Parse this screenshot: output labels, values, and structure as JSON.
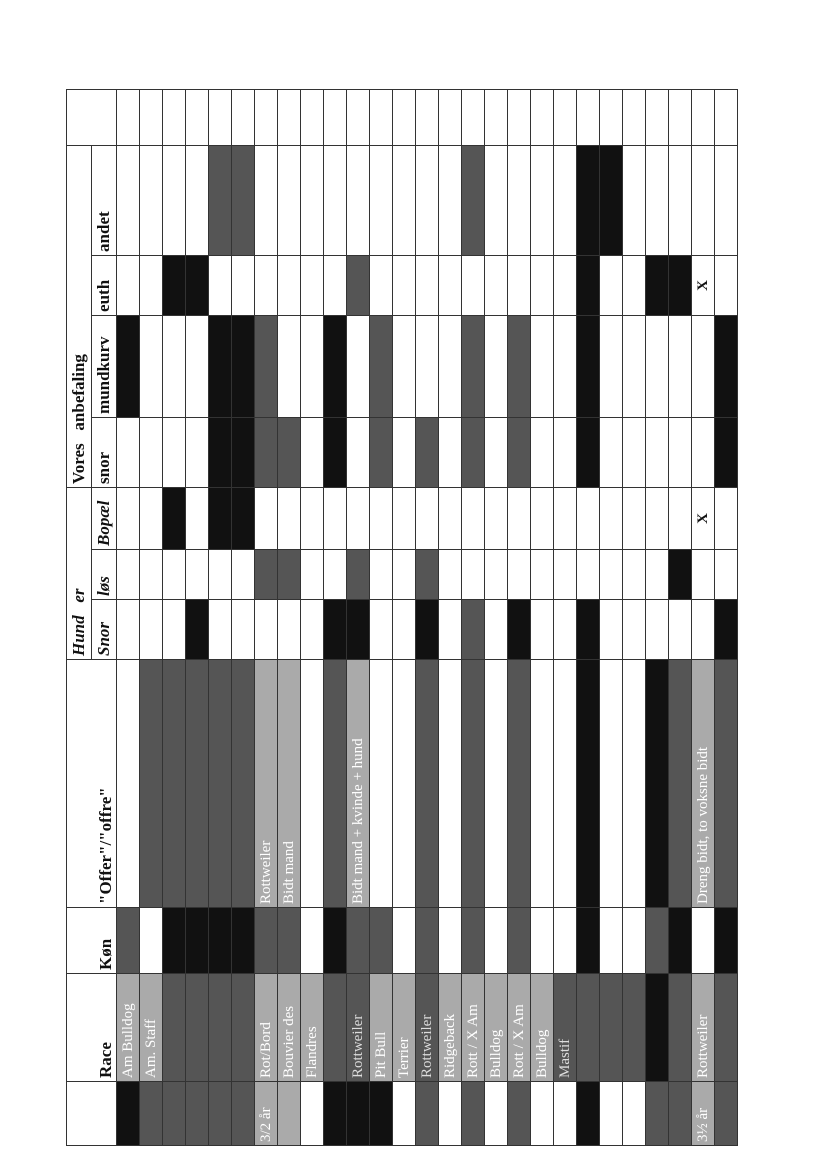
{
  "header": {
    "race": "Race",
    "kon": "Køn",
    "offer": "\"Offer\"/\"offre\"",
    "hund": "Hund",
    "er": "er",
    "snor": "Snor",
    "los": "løs",
    "bopael": "Bopæl",
    "vores": "Vores",
    "anbefaling": "anbefaling",
    "vsnor": "snor",
    "mundkurv": "mundkurv",
    "euth": "euth",
    "andet": "andet"
  },
  "table": {
    "rows": [
      [
        null,
        "Am Bulldog",
        null,
        null,
        null,
        null,
        null,
        null,
        null,
        null,
        null
      ],
      [
        null,
        "Am. Staff",
        null,
        null,
        null,
        null,
        null,
        null,
        null,
        null,
        null
      ],
      [
        null,
        null,
        null,
        null,
        null,
        null,
        null,
        null,
        null,
        null,
        null
      ],
      [
        null,
        null,
        null,
        null,
        null,
        null,
        null,
        null,
        null,
        null,
        null
      ],
      [
        null,
        null,
        null,
        null,
        null,
        null,
        null,
        null,
        null,
        null,
        null
      ],
      [
        null,
        null,
        null,
        null,
        null,
        null,
        null,
        null,
        null,
        null,
        null
      ],
      [
        "3/2 år",
        "Rot/Bord",
        null,
        "Rottweiler",
        null,
        null,
        null,
        null,
        null,
        null,
        null
      ],
      [
        null,
        "Bouvier des",
        null,
        "Bidt mand",
        null,
        null,
        null,
        null,
        null,
        null,
        null
      ],
      [
        null,
        "Flandres",
        null,
        null,
        null,
        null,
        null,
        null,
        null,
        null,
        null
      ],
      [
        null,
        null,
        null,
        null,
        null,
        null,
        null,
        null,
        null,
        null,
        null
      ],
      [
        null,
        "Rottweiler",
        null,
        "Bidt mand + kvinde + hund",
        null,
        null,
        null,
        null,
        null,
        null,
        null
      ],
      [
        null,
        "Pit Bull",
        null,
        null,
        null,
        null,
        null,
        null,
        null,
        null,
        null
      ],
      [
        null,
        "Terrier",
        null,
        null,
        null,
        null,
        null,
        null,
        null,
        null,
        null
      ],
      [
        null,
        "Rottweiler",
        null,
        null,
        null,
        null,
        null,
        null,
        null,
        null,
        null
      ],
      [
        null,
        "Ridgeback",
        null,
        null,
        null,
        null,
        null,
        null,
        null,
        null,
        null
      ],
      [
        null,
        "Rott / X Am",
        null,
        null,
        null,
        null,
        null,
        null,
        null,
        null,
        null
      ],
      [
        null,
        "Bulldog",
        null,
        null,
        null,
        null,
        null,
        null,
        null,
        null,
        null
      ],
      [
        null,
        "Rott / X Am",
        null,
        null,
        null,
        null,
        null,
        null,
        null,
        null,
        null
      ],
      [
        null,
        "Bulldog",
        null,
        null,
        null,
        null,
        null,
        null,
        null,
        null,
        null
      ],
      [
        null,
        "Mastif",
        null,
        null,
        null,
        null,
        null,
        null,
        null,
        null,
        null
      ],
      [
        null,
        null,
        null,
        null,
        null,
        null,
        null,
        null,
        null,
        null,
        null
      ],
      [
        null,
        null,
        null,
        null,
        null,
        null,
        null,
        null,
        null,
        null,
        null
      ],
      [
        null,
        null,
        null,
        null,
        null,
        null,
        null,
        null,
        null,
        null,
        null
      ],
      [
        null,
        null,
        null,
        null,
        null,
        null,
        null,
        null,
        null,
        null,
        null
      ],
      [
        null,
        null,
        null,
        null,
        null,
        null,
        null,
        null,
        null,
        null,
        null
      ],
      [
        "3½ år",
        "Rottweiler",
        null,
        "Dreng bidt, to voksne bidt",
        null,
        null,
        "X",
        null,
        null,
        "X",
        null
      ],
      [
        null,
        null,
        null,
        null,
        null,
        null,
        null,
        null,
        null,
        null,
        null
      ]
    ]
  }
}
